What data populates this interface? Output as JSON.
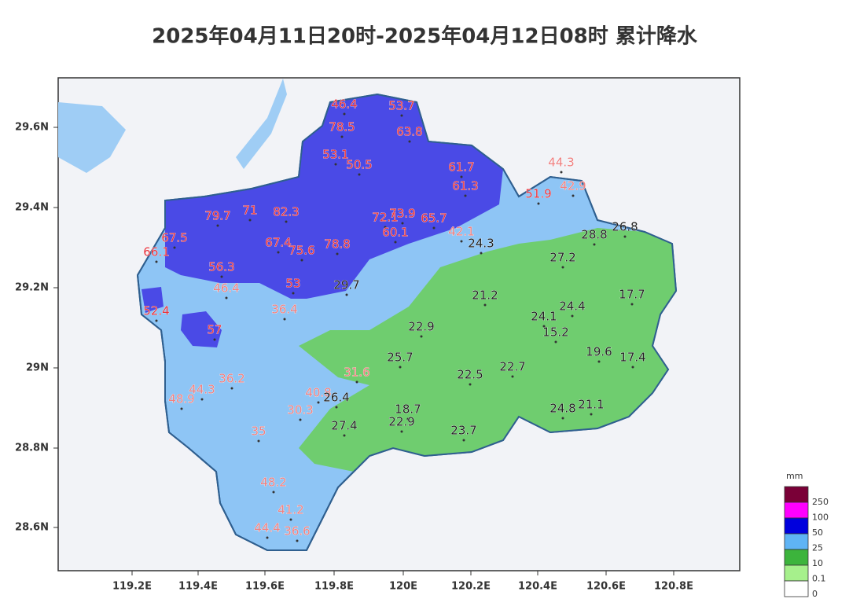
{
  "header": {
    "title": "2025年04月11日20时-2025年04月12日08时 累计降水"
  },
  "map": {
    "xticks": [
      "119.2E",
      "119.4E",
      "119.6E",
      "119.8E",
      "120E",
      "120.2E",
      "120.4E",
      "120.6E",
      "120.8E"
    ],
    "yticks": [
      "29.6N",
      "29.4N",
      "29.2N",
      "29N",
      "28.8N",
      "28.6N"
    ],
    "stations": [
      46.4,
      53.7,
      78.5,
      63.8,
      53.1,
      50.5,
      61.7,
      61.3,
      79.7,
      71,
      82.3,
      72.1,
      73.9,
      65.7,
      60.1,
      67.5,
      66.1,
      67.4,
      75.6,
      78.8,
      56.3,
      53,
      52.4,
      57,
      51.9,
      44.3,
      42.9,
      42.1,
      46.4,
      36.4,
      36.2,
      44.3,
      48.9,
      31.6,
      40.8,
      30.3,
      35,
      48.2,
      41.2,
      44.4,
      36.6,
      24.3,
      28.8,
      26.8,
      27.2,
      29.7,
      21.2,
      24.4,
      17.7,
      24.1,
      15.2,
      22.9,
      25.7,
      19.6,
      17.4,
      22.7,
      22.5,
      26.4,
      18.7,
      22.9,
      27.4,
      23.7,
      24.8,
      21.1
    ]
  },
  "legend": {
    "unit": "mm",
    "labels": [
      "250",
      "100",
      "50",
      "25",
      "10",
      "0.1",
      "0"
    ]
  }
}
